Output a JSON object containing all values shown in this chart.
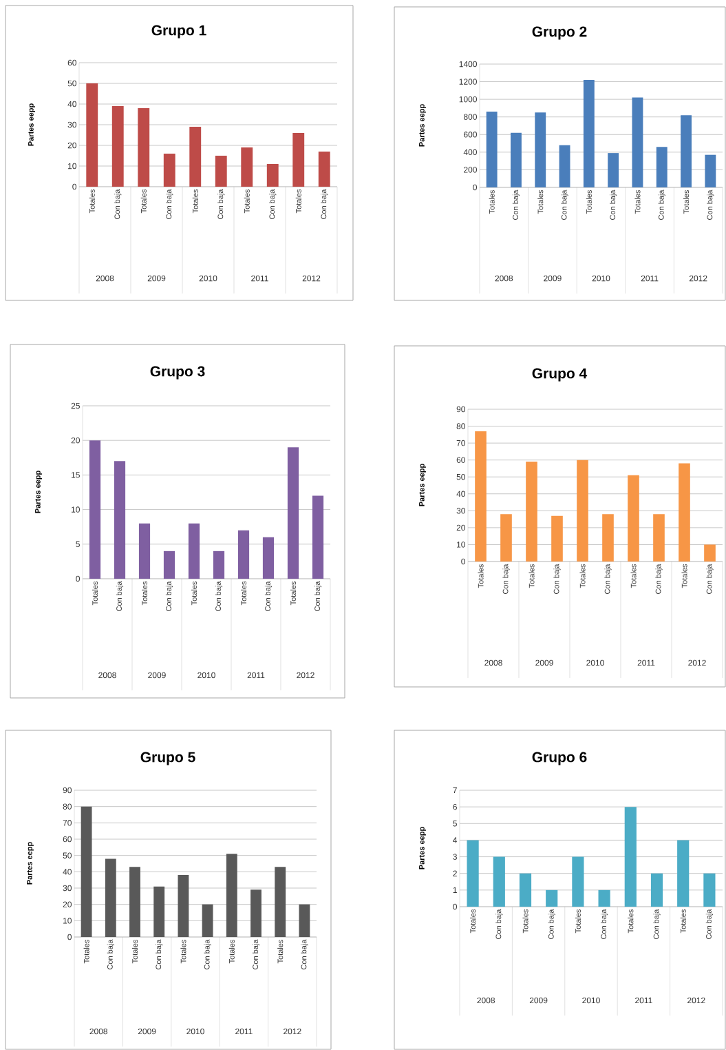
{
  "chart_data": [
    {
      "type": "bar",
      "title": "Grupo 1",
      "ylabel": "Partes eepp",
      "categories": [
        "Totales",
        "Con baja",
        "Totales",
        "Con baja",
        "Totales",
        "Con baja",
        "Totales",
        "Con baja",
        "Totales",
        "Con baja"
      ],
      "values": [
        50,
        39,
        38,
        16,
        29,
        15,
        19,
        11,
        26,
        17
      ],
      "color": "#be4b48",
      "ylim": [
        0,
        60
      ],
      "yticks": [
        0,
        10,
        20,
        30,
        40,
        50,
        60
      ],
      "grid": "y",
      "annotations": [
        "2008",
        "2009",
        "2010",
        "2011",
        "2012"
      ]
    },
    {
      "type": "bar",
      "title": "Grupo 2",
      "ylabel": "Partes eepp",
      "categories": [
        "Totales",
        "Con baja",
        "Totales",
        "Con baja",
        "Totales",
        "Con baja",
        "Totales",
        "Con baja",
        "Totales",
        "Con baja"
      ],
      "values": [
        860,
        620,
        850,
        480,
        1220,
        390,
        1020,
        460,
        820,
        370
      ],
      "color": "#4a7ebb",
      "ylim": [
        0,
        1400
      ],
      "yticks": [
        0,
        200,
        400,
        600,
        800,
        1000,
        1200,
        1400
      ],
      "grid": "y",
      "annotations": [
        "2008",
        "2009",
        "2010",
        "2011",
        "2012"
      ]
    },
    {
      "type": "bar",
      "title": "Grupo 3",
      "ylabel": "Partes eepp",
      "categories": [
        "Totales",
        "Con baja",
        "Totales",
        "Con baja",
        "Totales",
        "Con baja",
        "Totales",
        "Con baja",
        "Totales",
        "Con baja"
      ],
      "values": [
        20,
        17,
        8,
        4,
        8,
        4,
        7,
        6,
        19,
        12
      ],
      "color": "#7f5fa1",
      "ylim": [
        0,
        25
      ],
      "yticks": [
        0,
        5,
        10,
        15,
        20,
        25
      ],
      "grid": "y",
      "annotations": [
        "2008",
        "2009",
        "2010",
        "2011",
        "2012"
      ]
    },
    {
      "type": "bar",
      "title": "Grupo 4",
      "ylabel": "Partes eepp",
      "categories": [
        "Totales",
        "Con baja",
        "Totales",
        "Con baja",
        "Totales",
        "Con baja",
        "Totales",
        "Con baja",
        "Totales",
        "Con baja"
      ],
      "values": [
        77,
        28,
        59,
        27,
        60,
        28,
        51,
        28,
        58,
        10
      ],
      "color": "#f79646",
      "ylim": [
        0,
        90
      ],
      "yticks": [
        0,
        10,
        20,
        30,
        40,
        50,
        60,
        70,
        80,
        90
      ],
      "grid": "y",
      "annotations": [
        "2008",
        "2009",
        "2010",
        "2011",
        "2012"
      ]
    },
    {
      "type": "bar",
      "title": "Grupo 5",
      "ylabel": "Partes eepp",
      "categories": [
        "Totales",
        "Con baja",
        "Totales",
        "Con baja",
        "Totales",
        "Con baja",
        "Totales",
        "Con baja",
        "Totales",
        "Con baja"
      ],
      "values": [
        80,
        48,
        43,
        31,
        38,
        20,
        51,
        29,
        43,
        20
      ],
      "color": "#595959",
      "ylim": [
        0,
        90
      ],
      "yticks": [
        0,
        10,
        20,
        30,
        40,
        50,
        60,
        70,
        80,
        90
      ],
      "grid": "y",
      "annotations": [
        "2008",
        "2009",
        "2010",
        "2011",
        "2012"
      ]
    },
    {
      "type": "bar",
      "title": "Grupo 6",
      "ylabel": "Partes eepp",
      "categories": [
        "Totales",
        "Con baja",
        "Totales",
        "Con baja",
        "Totales",
        "Con baja",
        "Totales",
        "Con baja",
        "Totales",
        "Con baja"
      ],
      "values": [
        4,
        3,
        2,
        1,
        3,
        1,
        6,
        2,
        4,
        2
      ],
      "color": "#4bacc6",
      "ylim": [
        0,
        7
      ],
      "yticks": [
        0,
        1,
        2,
        3,
        4,
        5,
        6,
        7
      ],
      "grid": "y",
      "annotations": [
        "2008",
        "2009",
        "2010",
        "2011",
        "2012"
      ]
    }
  ]
}
